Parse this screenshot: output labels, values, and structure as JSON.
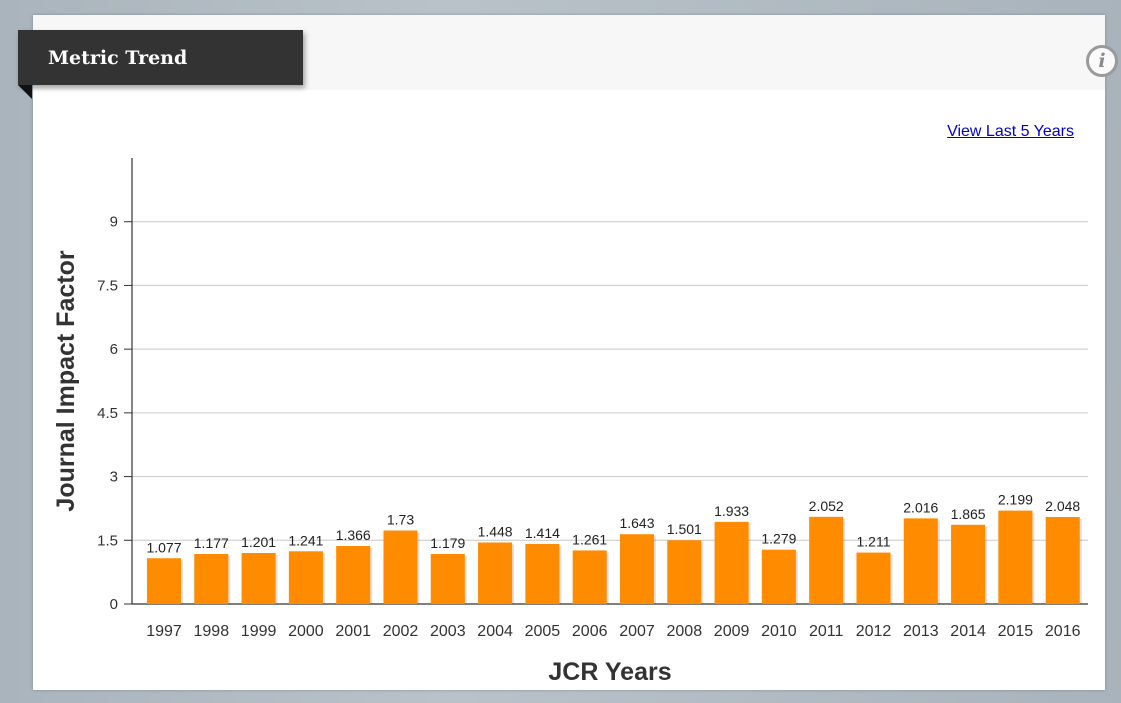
{
  "header": {
    "title": "Metric Trend",
    "info_icon": "info-icon"
  },
  "links": {
    "view_last": "View Last 5 Years"
  },
  "chart_data": {
    "type": "bar",
    "title": "",
    "xlabel": "JCR Years",
    "ylabel": "Journal Impact Factor",
    "ylim": [
      0,
      10.5
    ],
    "yticks": [
      0,
      1.5,
      3,
      4.5,
      6,
      7.5,
      9
    ],
    "ytick_labels": [
      "0",
      "1.5",
      "3",
      "4.5",
      "6",
      "7.5",
      "9"
    ],
    "grid": true,
    "bar_color": "#ff8c00",
    "categories": [
      "1997",
      "1998",
      "1999",
      "2000",
      "2001",
      "2002",
      "2003",
      "2004",
      "2005",
      "2006",
      "2007",
      "2008",
      "2009",
      "2010",
      "2011",
      "2012",
      "2013",
      "2014",
      "2015",
      "2016"
    ],
    "values": [
      1.077,
      1.177,
      1.201,
      1.241,
      1.366,
      1.73,
      1.179,
      1.448,
      1.414,
      1.261,
      1.643,
      1.501,
      1.933,
      1.279,
      2.052,
      1.211,
      2.016,
      1.865,
      2.199,
      2.048
    ],
    "value_labels": [
      "1.077",
      "1.177",
      "1.201",
      "1.241",
      "1.366",
      "1.73",
      "1.179",
      "1.448",
      "1.414",
      "1.261",
      "1.643",
      "1.501",
      "1.933",
      "1.279",
      "2.052",
      "1.211",
      "2.016",
      "1.865",
      "2.199",
      "2.048"
    ]
  }
}
